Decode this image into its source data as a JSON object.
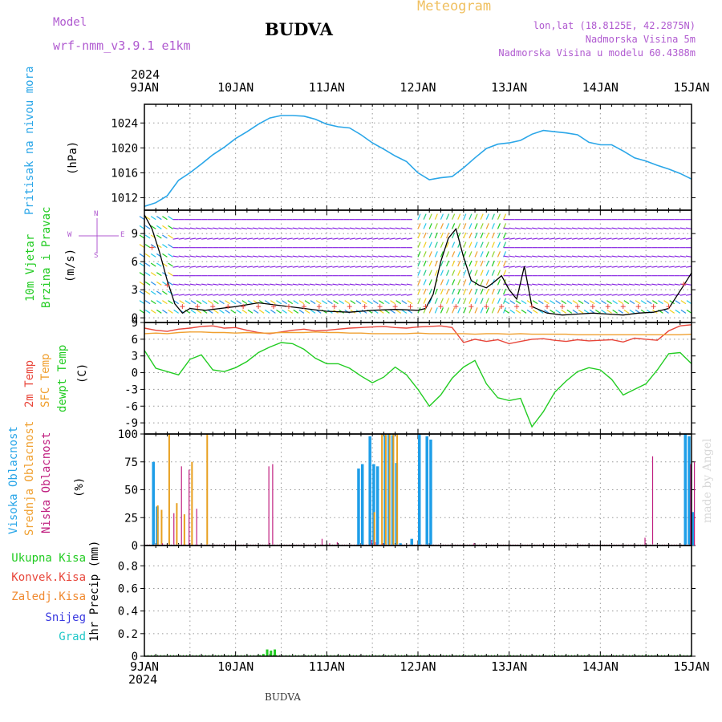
{
  "header": {
    "model_label": "Model",
    "model_name": "wrf-nmm_v3.9.1  e1km",
    "station": "BUDVA",
    "product": "Meteogram",
    "lonlat": "lon,lat (18.8125E, 42.2875N)",
    "elevation": "Nadmorska Visina 5m",
    "model_elevation": "Nadmorska Visina u modelu 60.4388m",
    "year_top": "2024",
    "year_bottom": "2024",
    "footer_station": "BUDVA",
    "credit": "made by Angel"
  },
  "time_axis": {
    "labels": [
      "9JAN",
      "10JAN",
      "11JAN",
      "12JAN",
      "13JAN",
      "14JAN",
      "15JAN"
    ],
    "hours": [
      0,
      24,
      48,
      72,
      96,
      120,
      144
    ]
  },
  "panel_labels": {
    "pressure": {
      "name": "Pritisak na nivou mora",
      "unit": "(hPa)"
    },
    "wind": {
      "line1": "10m Vjetar",
      "line2": "Brzina i Pravac",
      "unit": "(m/s)",
      "compass_n": "N",
      "compass_e": "E",
      "compass_w": "W",
      "compass_s": "S"
    },
    "temp": {
      "a": "2m Temp",
      "b": "SFC Temp",
      "c": "dewpt Temp",
      "unit": "(C)"
    },
    "cloud": {
      "a": "Visoka Oblacnost",
      "b": "Srednja Oblacnost",
      "c": "Niska Oblacnost",
      "unit": "(%)"
    },
    "precip": {
      "a": "Ukupna Kisa",
      "b": "Konvek.Kisa",
      "c": "Zaledj.Kisa",
      "d": "Snijeg",
      "e": "Grad",
      "unit": "1hr Precip (mm)"
    }
  },
  "colors": {
    "pressure": "#2aa6e8",
    "temp2m": "#e8463a",
    "sfc": "#f0a030",
    "dewpt": "#22cc22",
    "high_cloud": "#1e9ee8",
    "mid_cloud": "#e8a020",
    "low_cloud": "#c02080",
    "label_blue": "#2aa6e8",
    "label_green": "#22cc22",
    "label_red": "#e8463a",
    "label_orange": "#f08a30",
    "label_purple": "#b05ad0",
    "label_snow": "#3a3ae0",
    "label_grad": "#22c8c8",
    "meteogram_title": "#f0c060"
  },
  "chart_data": [
    {
      "type": "line",
      "title": "",
      "ylabel": "(hPa)",
      "ylim": [
        1010,
        1027
      ],
      "yticks": [
        1012,
        1016,
        1020,
        1024
      ],
      "x_hours": [
        0,
        3,
        6,
        9,
        12,
        15,
        18,
        21,
        24,
        27,
        30,
        33,
        36,
        39,
        42,
        45,
        48,
        51,
        54,
        57,
        60,
        63,
        66,
        69,
        72,
        75,
        78,
        81,
        84,
        87,
        90,
        93,
        96,
        99,
        102,
        105,
        108,
        111,
        114,
        117,
        120,
        123,
        126,
        129,
        132,
        135,
        138,
        141,
        144
      ],
      "values": [
        1010.6,
        1011.2,
        1012.3,
        1014.8,
        1016.0,
        1017.4,
        1018.9,
        1020.1,
        1021.5,
        1022.6,
        1023.8,
        1024.8,
        1025.2,
        1025.2,
        1025.1,
        1024.6,
        1023.8,
        1023.4,
        1023.2,
        1022.1,
        1020.8,
        1019.8,
        1018.7,
        1017.8,
        1016.0,
        1014.9,
        1015.2,
        1015.4,
        1016.8,
        1018.4,
        1019.9,
        1020.6,
        1020.8,
        1021.2,
        1022.2,
        1022.8,
        1022.6,
        1022.4,
        1022.1,
        1020.9,
        1020.5,
        1020.5,
        1019.5,
        1018.4,
        1017.9,
        1017.2,
        1016.6,
        1015.9,
        1015.0
      ]
    },
    {
      "type": "line",
      "title": "",
      "ylabel": "(m/s)",
      "ylim": [
        -0.5,
        11.5
      ],
      "yticks": [
        0,
        3,
        6,
        9
      ],
      "series": [
        {
          "name": "",
          "x_hours": [
            0,
            2,
            4,
            6,
            8,
            10,
            12,
            16,
            20,
            24,
            30,
            36,
            42,
            48,
            54,
            60,
            66,
            72,
            74,
            76,
            78,
            80,
            82,
            84,
            86,
            88,
            90,
            92,
            94,
            96,
            98,
            100,
            102,
            106,
            110,
            114,
            118,
            122,
            126,
            130,
            134,
            138,
            142,
            144
          ],
          "values": [
            11,
            9.5,
            7,
            4,
            1.5,
            0.5,
            1,
            0.8,
            1,
            1.2,
            1.6,
            1.3,
            1.0,
            0.7,
            0.6,
            0.8,
            0.9,
            0.8,
            1.0,
            2.5,
            6,
            8.5,
            9.5,
            6.5,
            4,
            3.5,
            3.2,
            3.8,
            4.5,
            3.0,
            2.0,
            5.5,
            1.2,
            0.5,
            0.3,
            0.4,
            0.5,
            0.4,
            0.3,
            0.5,
            0.6,
            1.0,
            3.5,
            4.8
          ]
        }
      ]
    },
    {
      "type": "line",
      "title": "",
      "ylabel": "(C)",
      "ylim": [
        -11,
        9
      ],
      "yticks": [
        -9,
        -6,
        -3,
        0,
        3,
        6,
        9
      ],
      "x_hours": [
        0,
        3,
        6,
        9,
        12,
        15,
        18,
        21,
        24,
        27,
        30,
        33,
        36,
        39,
        42,
        45,
        48,
        51,
        54,
        57,
        60,
        63,
        66,
        69,
        72,
        75,
        78,
        81,
        84,
        87,
        90,
        93,
        96,
        99,
        102,
        105,
        108,
        111,
        114,
        117,
        120,
        123,
        126,
        129,
        132,
        135,
        138,
        141,
        144
      ],
      "series": [
        {
          "name": "2m Temp",
          "values": [
            8.0,
            7.6,
            7.4,
            7.8,
            8.0,
            8.3,
            8.4,
            8.0,
            8.1,
            7.6,
            7.2,
            7.0,
            7.3,
            7.6,
            7.8,
            7.5,
            7.6,
            7.8,
            8.0,
            8.1,
            8.2,
            8.3,
            8.1,
            8.0,
            8.2,
            8.3,
            8.4,
            8.1,
            5.4,
            6.0,
            5.6,
            5.9,
            5.2,
            5.6,
            6.0,
            6.1,
            5.8,
            5.6,
            5.9,
            5.7,
            5.8,
            5.9,
            5.5,
            6.2,
            6.0,
            5.8,
            7.5,
            8.4,
            8.6
          ]
        },
        {
          "name": "SFC Temp",
          "values": [
            7.0,
            7.1,
            7.0,
            7.2,
            7.3,
            7.3,
            7.2,
            7.2,
            7.1,
            7.2,
            7.1,
            7.1,
            7.2,
            7.2,
            7.2,
            7.3,
            7.2,
            7.2,
            7.1,
            7.1,
            7.0,
            7.0,
            7.0,
            7.0,
            7.1,
            7.0,
            7.0,
            7.0,
            7.0,
            6.9,
            7.0,
            7.0,
            6.9,
            7.0,
            6.9,
            6.9,
            6.9,
            6.9,
            6.8,
            6.8,
            6.8,
            6.8,
            6.8,
            6.8,
            6.8,
            6.8,
            6.8,
            6.8,
            6.9
          ]
        },
        {
          "name": "dewpt Temp",
          "values": [
            4.0,
            0.8,
            0.2,
            -0.4,
            2.4,
            3.2,
            0.5,
            0.2,
            0.9,
            2.0,
            3.6,
            4.6,
            5.4,
            5.2,
            4.2,
            2.6,
            1.6,
            1.6,
            0.8,
            -0.6,
            -1.8,
            -0.8,
            1.0,
            -0.4,
            -3.0,
            -6.0,
            -4.0,
            -1.0,
            1.0,
            2.2,
            -2.0,
            -4.5,
            -5.0,
            -4.6,
            -9.7,
            -7.0,
            -3.5,
            -1.5,
            0.2,
            0.9,
            0.5,
            -1.2,
            -4.0,
            -3.0,
            -2.0,
            0.5,
            3.4,
            3.6,
            1.6
          ]
        }
      ]
    },
    {
      "type": "bar",
      "title": "",
      "ylabel": "(%)",
      "ylim": [
        0,
        100
      ],
      "yticks": [
        0,
        25,
        50,
        75,
        100
      ],
      "series": [
        {
          "name": "Visoka Oblacnost",
          "x_hours": [
            2,
            3,
            56,
            57,
            59,
            60,
            61,
            63,
            64,
            65,
            66,
            67,
            70,
            72,
            74,
            75,
            142,
            143,
            144
          ],
          "values": [
            75,
            35,
            69,
            73,
            98,
            73,
            71,
            99,
            100,
            99,
            74,
            2,
            6,
            100,
            98,
            95,
            100,
            98,
            30
          ]
        },
        {
          "name": "Srednja Oblacnost",
          "x_hours": [
            3,
            4,
            6,
            8,
            10,
            12,
            16,
            60,
            62,
            63,
            64,
            65,
            66
          ],
          "values": [
            36,
            32,
            100,
            38,
            28,
            75,
            100,
            30,
            100,
            100,
            100,
            100,
            100
          ]
        },
        {
          "name": "Niska Oblacnost",
          "x_hours": [
            4,
            7,
            9,
            11,
            13,
            32,
            33,
            46,
            48,
            50,
            59,
            60,
            62,
            86,
            131,
            133,
            143,
            144
          ],
          "values": [
            2,
            29,
            71,
            68,
            33,
            71,
            73,
            6,
            2,
            3,
            5,
            3,
            2,
            2,
            7,
            80,
            73,
            75
          ]
        }
      ]
    },
    {
      "type": "bar",
      "title": "",
      "ylabel": "1hr Precip (mm)",
      "ylim": [
        0,
        0.98
      ],
      "yticks": [
        0,
        0.2,
        0.4,
        0.6,
        0.8
      ],
      "series": [
        {
          "name": "Ukupna Kisa",
          "x_hours": [
            30,
            31,
            32,
            33,
            34
          ],
          "values": [
            0.01,
            0.02,
            0.06,
            0.05,
            0.06
          ]
        },
        {
          "name": "Konvek.Kisa",
          "x_hours": [],
          "values": []
        },
        {
          "name": "Zaledj.Kisa",
          "x_hours": [],
          "values": []
        },
        {
          "name": "Snijeg",
          "x_hours": [],
          "values": []
        },
        {
          "name": "Grad",
          "x_hours": [],
          "values": []
        }
      ]
    }
  ]
}
